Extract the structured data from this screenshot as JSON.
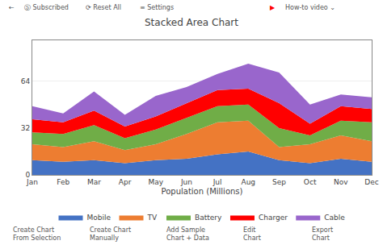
{
  "chart_data": {
    "type": "area",
    "title": "Stacked Area Chart",
    "xlabel": "Population (Millions)",
    "categories": [
      "Jan",
      "Feb",
      "Mar",
      "Apr",
      "May",
      "Jun",
      "Jul",
      "Aug",
      "Sep",
      "Oct",
      "Nov",
      "Dec"
    ],
    "series": [
      {
        "name": "Mobile",
        "color": "#4472C4",
        "values": [
          10,
          9,
          10,
          8,
          10,
          11,
          14,
          16,
          10,
          8,
          11,
          9
        ]
      },
      {
        "name": "TV",
        "color": "#ED7D31",
        "values": [
          11,
          10,
          13,
          9,
          11,
          17,
          22,
          21,
          9,
          13,
          16,
          14
        ]
      },
      {
        "name": "Battery",
        "color": "#70AD47",
        "values": [
          8,
          9,
          11,
          8,
          10,
          11,
          11,
          11,
          13,
          6,
          10,
          13
        ]
      },
      {
        "name": "Charger",
        "color": "#FF0000",
        "values": [
          9,
          8,
          10,
          8,
          9,
          10,
          11,
          11,
          17,
          8,
          10,
          9
        ]
      },
      {
        "name": "Cable",
        "color": "#9966CC",
        "values": [
          9,
          6,
          13,
          8,
          14,
          11,
          11,
          17,
          21,
          13,
          8,
          8
        ]
      }
    ],
    "stacked": true,
    "ylim": [
      0,
      92
    ],
    "yticks": [
      0,
      32,
      64
    ],
    "grid": true,
    "legend": "bottom",
    "annotations": {
      "header": [
        "←",
        "Ⓢ Subscribed",
        "⟳ Reset All",
        "≡ Settings",
        "▶",
        "How-to video ⌄"
      ],
      "footer": [
        "Create Chart\nFrom Selection",
        "Create Chart\nManually",
        "Add Sample\nChart + Data",
        "Edit\nChart",
        "Export\nChart"
      ]
    }
  }
}
